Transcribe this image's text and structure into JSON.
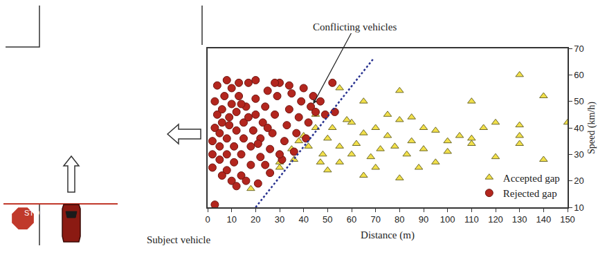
{
  "chart_data": {
    "type": "scatter",
    "xlabel": "Distance (m)",
    "ylabel": "Speed (km/h)",
    "xlim": [
      0,
      150
    ],
    "xticks": [
      0,
      10,
      20,
      30,
      40,
      50,
      60,
      70,
      80,
      90,
      100,
      110,
      120,
      130,
      140,
      150
    ],
    "ylim": [
      10,
      70
    ],
    "yticks": [
      10,
      20,
      30,
      40,
      50,
      60,
      70
    ],
    "grid": false,
    "legend": "lower right",
    "series": [
      {
        "name": "Accepted gap",
        "color": "#f2e04a",
        "marker": "triangle-up",
        "x": [
          55,
          65,
          80,
          110,
          130,
          140,
          150,
          130,
          130,
          130,
          140,
          120,
          120,
          110,
          110,
          100,
          95,
          90,
          85,
          75,
          70,
          65,
          60,
          60,
          50,
          45,
          40,
          35,
          30,
          30,
          50,
          55,
          70,
          80,
          80,
          90,
          100,
          75,
          85,
          58,
          62,
          68,
          72,
          48,
          42,
          38,
          18,
          45,
          52,
          55,
          95,
          105,
          115,
          65,
          88,
          78,
          83,
          47,
          36
        ],
        "y": [
          55,
          50,
          54,
          50,
          60,
          52,
          42,
          41,
          37,
          34,
          28,
          42,
          29,
          36,
          34,
          31,
          39,
          32,
          35,
          37,
          40,
          38,
          42,
          30,
          36,
          40,
          37,
          32,
          27,
          25,
          24,
          27,
          25,
          21,
          43,
          40,
          35,
          45,
          44,
          43,
          34,
          29,
          32,
          30,
          33,
          35,
          17,
          45,
          40,
          33,
          27,
          37,
          40,
          22,
          25,
          33,
          30,
          27,
          28
        ]
      },
      {
        "name": "Rejected gap",
        "color": "#b3261e",
        "marker": "circle",
        "x": [
          3,
          2,
          2,
          2,
          3,
          4,
          3,
          5,
          5,
          5,
          6,
          6,
          7,
          8,
          8,
          8,
          9,
          10,
          10,
          11,
          11,
          12,
          12,
          13,
          14,
          14,
          15,
          15,
          16,
          17,
          18,
          18,
          19,
          20,
          20,
          21,
          22,
          22,
          23,
          24,
          25,
          26,
          26,
          27,
          28,
          29,
          30,
          31,
          32,
          33,
          34,
          35,
          36,
          37,
          38,
          39,
          40,
          41,
          42,
          43,
          44,
          45,
          47,
          49,
          52,
          53,
          10,
          12,
          6,
          16,
          24,
          4,
          8,
          13,
          20,
          28,
          34,
          30,
          25,
          17,
          9,
          21,
          14
        ],
        "y": [
          11,
          25,
          30,
          35,
          40,
          45,
          50,
          28,
          33,
          38,
          42,
          47,
          52,
          24,
          30,
          36,
          44,
          49,
          55,
          27,
          33,
          39,
          46,
          52,
          22,
          30,
          36,
          42,
          48,
          57,
          26,
          33,
          39,
          45,
          51,
          19,
          29,
          36,
          42,
          48,
          54,
          23,
          32,
          38,
          45,
          52,
          57,
          28,
          35,
          41,
          47,
          53,
          31,
          38,
          44,
          50,
          55,
          36,
          42,
          48,
          52,
          46,
          50,
          45,
          57,
          46,
          20,
          18,
          22,
          20,
          26,
          56,
          58,
          57,
          58,
          57,
          56,
          30,
          40,
          44,
          41,
          34,
          49
        ]
      },
      {
        "type": "line",
        "line_style": "dot",
        "color": "#27318f",
        "x": [
          20,
          69
        ],
        "y": [
          10,
          66
        ]
      }
    ],
    "annotations": [
      {
        "text": "Conflicting vehicles",
        "x": 44,
        "y": 49
      },
      {
        "text": "Subject vehicle"
      },
      {
        "text": "STOP"
      }
    ]
  }
}
